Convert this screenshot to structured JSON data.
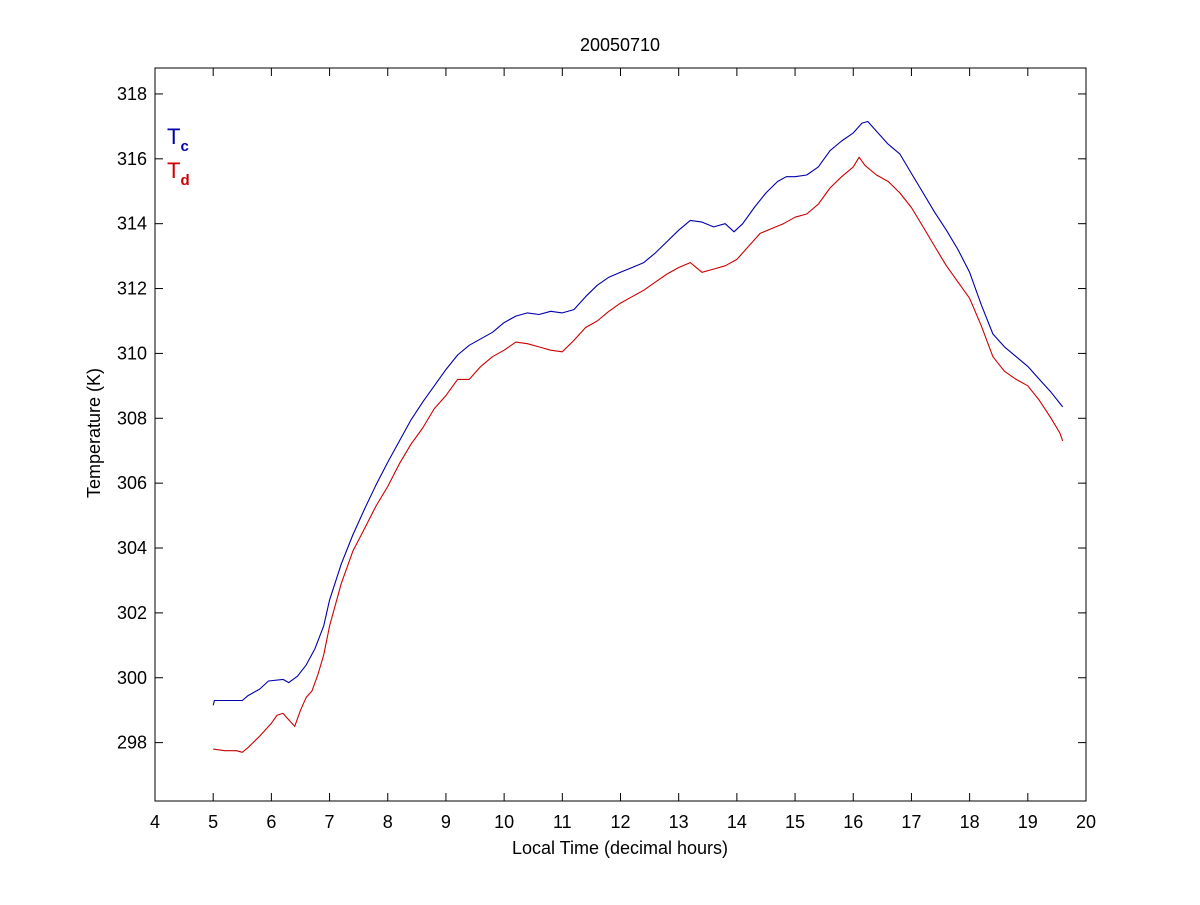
{
  "chart_data": {
    "type": "line",
    "title": "20050710",
    "xlabel": "Local Time (decimal hours)",
    "ylabel": "Temperature (K)",
    "xlim": [
      4,
      20
    ],
    "ylim": [
      296.2,
      318.8
    ],
    "xticks": [
      4,
      5,
      6,
      7,
      8,
      9,
      10,
      11,
      12,
      13,
      14,
      15,
      16,
      17,
      18,
      19,
      20
    ],
    "yticks": [
      298,
      300,
      302,
      304,
      306,
      308,
      310,
      312,
      314,
      316,
      318
    ],
    "grid": false,
    "legend_position": "top-left",
    "series": [
      {
        "name": "T",
        "subscript": "c",
        "color": "#0000aa",
        "x": [
          5.0,
          5.02,
          5.5,
          5.6,
          5.8,
          5.95,
          6.2,
          6.3,
          6.45,
          6.6,
          6.75,
          6.9,
          7.0,
          7.2,
          7.4,
          7.6,
          7.8,
          8.0,
          8.2,
          8.4,
          8.6,
          8.8,
          9.0,
          9.2,
          9.4,
          9.6,
          9.8,
          10.0,
          10.2,
          10.4,
          10.6,
          10.8,
          11.0,
          11.2,
          11.4,
          11.6,
          11.8,
          12.0,
          12.2,
          12.4,
          12.6,
          12.8,
          13.0,
          13.2,
          13.4,
          13.6,
          13.8,
          13.95,
          14.1,
          14.3,
          14.5,
          14.7,
          14.85,
          15.0,
          15.2,
          15.4,
          15.6,
          15.8,
          16.0,
          16.15,
          16.25,
          16.4,
          16.6,
          16.8,
          17.0,
          17.2,
          17.4,
          17.6,
          17.8,
          18.0,
          18.2,
          18.4,
          18.6,
          18.8,
          19.0,
          19.2,
          19.4,
          19.6
        ],
        "y": [
          299.15,
          299.3,
          299.3,
          299.45,
          299.65,
          299.9,
          299.95,
          299.85,
          300.05,
          300.4,
          300.9,
          301.6,
          302.4,
          303.5,
          304.4,
          305.2,
          305.95,
          306.65,
          307.3,
          307.95,
          308.5,
          309.0,
          309.5,
          309.95,
          310.25,
          310.45,
          310.65,
          310.95,
          311.15,
          311.25,
          311.2,
          311.3,
          311.25,
          311.35,
          311.75,
          312.1,
          312.35,
          312.5,
          312.65,
          312.8,
          313.1,
          313.45,
          313.8,
          314.1,
          314.05,
          313.9,
          314.0,
          313.75,
          314.0,
          314.5,
          314.95,
          315.3,
          315.45,
          315.45,
          315.5,
          315.75,
          316.25,
          316.55,
          316.8,
          317.1,
          317.15,
          316.85,
          316.45,
          316.15,
          315.55,
          314.95,
          314.35,
          313.8,
          313.2,
          312.5,
          311.5,
          310.6,
          310.2,
          309.9,
          309.6,
          309.2,
          308.8,
          308.35
        ]
      },
      {
        "name": "T",
        "subscript": "d",
        "color": "#cc0000",
        "x": [
          5.0,
          5.2,
          5.4,
          5.5,
          5.6,
          5.8,
          6.0,
          6.1,
          6.2,
          6.3,
          6.4,
          6.5,
          6.6,
          6.7,
          6.8,
          6.9,
          7.0,
          7.2,
          7.4,
          7.6,
          7.8,
          8.0,
          8.2,
          8.4,
          8.6,
          8.8,
          9.0,
          9.2,
          9.4,
          9.6,
          9.8,
          10.0,
          10.2,
          10.4,
          10.6,
          10.8,
          11.0,
          11.2,
          11.4,
          11.6,
          11.8,
          12.0,
          12.2,
          12.4,
          12.6,
          12.8,
          13.0,
          13.2,
          13.4,
          13.6,
          13.8,
          14.0,
          14.2,
          14.4,
          14.6,
          14.8,
          15.0,
          15.2,
          15.4,
          15.6,
          15.8,
          16.0,
          16.1,
          16.2,
          16.4,
          16.6,
          16.8,
          17.0,
          17.2,
          17.4,
          17.6,
          17.8,
          18.0,
          18.2,
          18.4,
          18.6,
          18.8,
          19.0,
          19.2,
          19.4,
          19.55,
          19.6
        ],
        "y": [
          297.8,
          297.75,
          297.75,
          297.7,
          297.85,
          298.2,
          298.6,
          298.85,
          298.9,
          298.7,
          298.5,
          299.0,
          299.4,
          299.6,
          300.1,
          300.7,
          301.6,
          302.9,
          303.9,
          304.6,
          305.3,
          305.9,
          306.6,
          307.2,
          307.7,
          308.3,
          308.7,
          309.2,
          309.2,
          309.6,
          309.9,
          310.1,
          310.35,
          310.3,
          310.2,
          310.1,
          310.05,
          310.4,
          310.8,
          311.0,
          311.3,
          311.55,
          311.75,
          311.95,
          312.2,
          312.45,
          312.65,
          312.8,
          312.5,
          312.6,
          312.7,
          312.9,
          313.3,
          313.7,
          313.85,
          314.0,
          314.2,
          314.3,
          314.6,
          315.1,
          315.45,
          315.75,
          316.05,
          315.8,
          315.5,
          315.3,
          314.95,
          314.5,
          313.9,
          313.3,
          312.7,
          312.2,
          311.7,
          310.85,
          309.9,
          309.45,
          309.2,
          309.0,
          308.55,
          308.0,
          307.55,
          307.3
        ]
      }
    ]
  }
}
